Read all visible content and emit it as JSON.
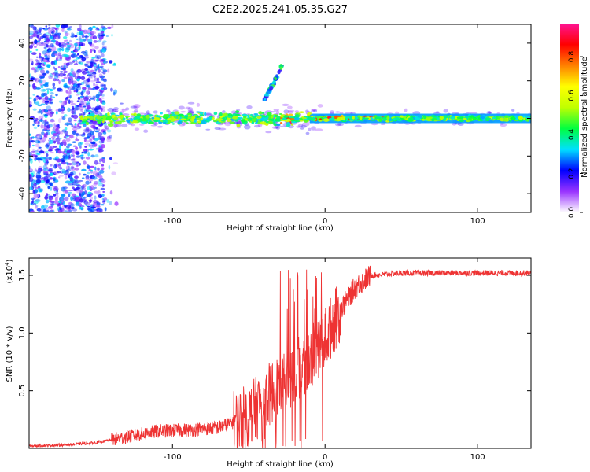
{
  "figure_title": "C2E2.2025.241.05.35.G27",
  "chart_data": [
    {
      "type": "heatmap",
      "title": "",
      "xlabel": "Height of straight line (km)",
      "ylabel": "Frequency (Hz)",
      "xlim": [
        -194,
        135
      ],
      "ylim": [
        -50,
        50
      ],
      "xticks": [
        -100,
        0,
        100
      ],
      "xtick_labels": [
        "-100",
        "0",
        "100"
      ],
      "yticks": [
        -40,
        -20,
        0,
        20,
        40
      ],
      "ytick_labels": [
        "-40",
        "-20",
        "0",
        "20",
        "40"
      ],
      "colorbar": {
        "label": "Normalized spectral amplitude",
        "range": [
          0,
          0.97
        ],
        "ticks": [
          0.0,
          0.2,
          0.4,
          0.6,
          0.8
        ],
        "tick_labels": [
          "0.0",
          "0.2",
          "0.4",
          "0.6",
          "0.8"
        ],
        "colors": [
          "#ffffff",
          "#9933ff",
          "#0000ff",
          "#00e0ff",
          "#00ff40",
          "#c0ff00",
          "#ffff00",
          "#ff8000",
          "#ff0000",
          "#ff1493"
        ]
      },
      "description": "Noisy scattered speckle below about -140 km; signal band near 0 Hz from -160 km to 135 km with a faint rising branch near -30 km",
      "band": {
        "x_start": -160,
        "x_end": 135,
        "center_hz": 0
      },
      "branch": {
        "x": [
          -40,
          -34,
          -30,
          -28
        ],
        "hz": [
          10,
          18,
          25,
          29
        ]
      }
    },
    {
      "type": "line",
      "title": "",
      "xlabel": "Height of straight line (km)",
      "ylabel": "SNR (10 * v/v)",
      "multiplier_label": "(x10",
      "multiplier_exponent": "4",
      "multiplier_close": ")",
      "xlim": [
        -194,
        135
      ],
      "ylim": [
        0,
        1.65
      ],
      "xticks": [
        -100,
        0,
        100
      ],
      "xtick_labels": [
        "-100",
        "0",
        "100"
      ],
      "yticks": [
        0.5,
        1.0,
        1.5
      ],
      "ytick_labels": [
        "0.5",
        "1.0",
        "1.5"
      ],
      "series": [
        {
          "name": "SNR",
          "color": "#ee3333",
          "x": [
            -194,
            -170,
            -150,
            -130,
            -110,
            -90,
            -70,
            -50,
            -40,
            -30,
            -20,
            -10,
            0,
            10,
            20,
            30,
            50,
            70,
            100,
            135
          ],
          "y": [
            0.02,
            0.03,
            0.05,
            0.1,
            0.15,
            0.16,
            0.18,
            0.28,
            0.42,
            0.55,
            0.65,
            0.78,
            0.95,
            1.2,
            1.4,
            1.5,
            1.52,
            1.52,
            1.52,
            1.52
          ]
        }
      ]
    }
  ]
}
